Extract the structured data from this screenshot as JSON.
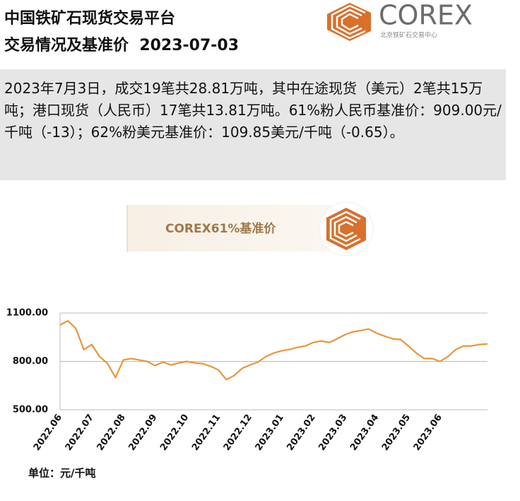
{
  "header": {
    "title_line1": "中国铁矿石现货交易平台",
    "title_line2": "交易情况及基准价  2023-07-03",
    "logo_text": "COREX",
    "logo_subtitle": "北京铁矿石交易中心"
  },
  "summary": "2023年7月3日，成交19笔共28.81万吨，其中在途现货（美元）2笔共15万吨；港口现货（人民币）17笔共13.81万吨。61%粉人民币基准价：909.00元/千吨（-13）；62%粉美元基准价：109.85美元/千吨（-0.65）。",
  "chart_data": {
    "type": "line",
    "banner": "COREX61%基准价",
    "unit_label": "单位：元/千吨",
    "categories": [
      "2022.06",
      null,
      null,
      null,
      "2022.07",
      null,
      null,
      null,
      "2022.08",
      null,
      null,
      null,
      "2022.09",
      null,
      null,
      null,
      "2022.10",
      null,
      null,
      null,
      "2022.11",
      null,
      null,
      null,
      "2022.12",
      null,
      null,
      null,
      "2023.01",
      null,
      null,
      null,
      "2023.02",
      null,
      null,
      null,
      "2023.03",
      null,
      null,
      null,
      "2023.04",
      null,
      null,
      null,
      "2023.05",
      null,
      null,
      null,
      "2023.06",
      null,
      null,
      null,
      null,
      null,
      null
    ],
    "values": [
      1026,
      1052,
      1004,
      873,
      905,
      830,
      787,
      700,
      809,
      818,
      809,
      800,
      774,
      796,
      778,
      791,
      800,
      791,
      787,
      770,
      748,
      687,
      713,
      757,
      778,
      796,
      830,
      852,
      866,
      874,
      887,
      896,
      918,
      927,
      918,
      940,
      966,
      984,
      992,
      1001,
      975,
      957,
      940,
      936,
      896,
      852,
      818,
      818,
      800,
      830,
      874,
      896,
      896,
      905,
      909
    ],
    "color": "#e8963c",
    "ylim": [
      500,
      1100
    ],
    "yticks": [
      {
        "value": 500,
        "label": "500.00"
      },
      {
        "value": 800,
        "label": "800.00"
      },
      {
        "value": 1100,
        "label": "1100.00"
      }
    ],
    "grid": true
  }
}
